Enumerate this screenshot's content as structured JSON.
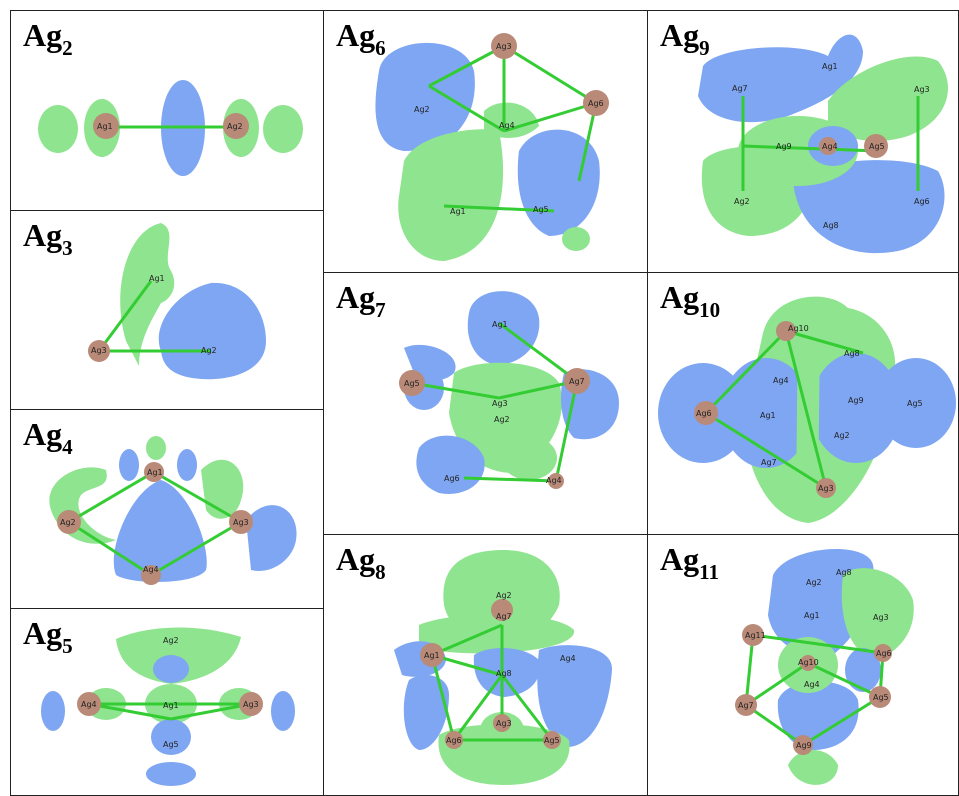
{
  "panels": [
    {
      "id": "ag2",
      "title_main": "Ag",
      "title_sub": "2",
      "atoms": [
        "Ag1",
        "Ag2"
      ]
    },
    {
      "id": "ag3",
      "title_main": "Ag",
      "title_sub": "3",
      "atoms": [
        "Ag1",
        "Ag2",
        "Ag3"
      ]
    },
    {
      "id": "ag4",
      "title_main": "Ag",
      "title_sub": "4",
      "atoms": [
        "Ag1",
        "Ag2",
        "Ag3",
        "Ag4"
      ]
    },
    {
      "id": "ag5",
      "title_main": "Ag",
      "title_sub": "5",
      "atoms": [
        "Ag1",
        "Ag2",
        "Ag3",
        "Ag4",
        "Ag5"
      ]
    },
    {
      "id": "ag6",
      "title_main": "Ag",
      "title_sub": "6",
      "atoms": [
        "Ag1",
        "Ag2",
        "Ag3",
        "Ag4",
        "Ag5",
        "Ag6"
      ]
    },
    {
      "id": "ag7",
      "title_main": "Ag",
      "title_sub": "7",
      "atoms": [
        "Ag1",
        "Ag2",
        "Ag3",
        "Ag4",
        "Ag5",
        "Ag6",
        "Ag7"
      ]
    },
    {
      "id": "ag8",
      "title_main": "Ag",
      "title_sub": "8",
      "atoms": [
        "Ag1",
        "Ag2",
        "Ag3",
        "Ag4",
        "Ag5",
        "Ag6",
        "Ag7",
        "Ag8"
      ]
    },
    {
      "id": "ag9",
      "title_main": "Ag",
      "title_sub": "9",
      "atoms": [
        "Ag1",
        "Ag2",
        "Ag3",
        "Ag4",
        "Ag5",
        "Ag6",
        "Ag7",
        "Ag8",
        "Ag9"
      ]
    },
    {
      "id": "ag10",
      "title_main": "Ag",
      "title_sub": "10",
      "atoms": [
        "Ag1",
        "Ag2",
        "Ag3",
        "Ag4",
        "Ag5",
        "Ag6",
        "Ag7",
        "Ag8",
        "Ag9",
        "Ag10"
      ]
    },
    {
      "id": "ag11",
      "title_main": "Ag",
      "title_sub": "11",
      "atoms": [
        "Ag1",
        "Ag2",
        "Ag3",
        "Ag4",
        "Ag5",
        "Ag6",
        "Ag7",
        "Ag8",
        "Ag9",
        "Ag10",
        "Ag11"
      ]
    }
  ],
  "colors": {
    "lobe_positive": "#8fe48f",
    "lobe_negative": "#7ea6f2",
    "atom": "#b98a78",
    "bond": "#33cc33",
    "border": "#222222"
  }
}
